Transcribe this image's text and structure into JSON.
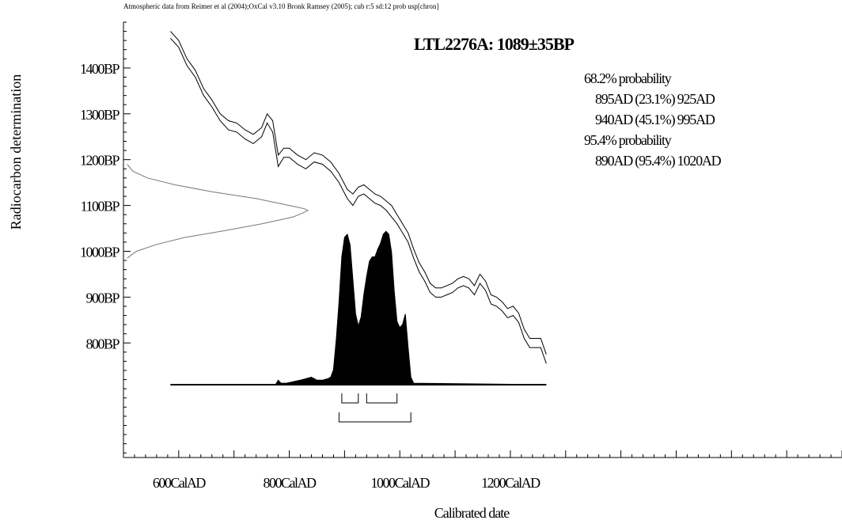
{
  "chart_data": {
    "type": "area",
    "header_note": "Atmospheric data from Reimer et al (2004);OxCal v3.10 Bronk Ramsey (2005); cub r:5 sd:12 prob usp[chron]",
    "title": "LTL2276A: 1089±35BP",
    "xlabel": "Calibrated date",
    "ylabel": "Radiocarbon determination",
    "x_unit": "CalAD",
    "y_unit": "BP",
    "xlim": [
      500,
      1800
    ],
    "ylim": [
      550,
      1500
    ],
    "x_ticks": [
      {
        "value": 600,
        "label": "600CalAD"
      },
      {
        "value": 800,
        "label": "800CalAD"
      },
      {
        "value": 1000,
        "label": "1000CalAD"
      },
      {
        "value": 1200,
        "label": "1200CalAD"
      }
    ],
    "y_ticks": [
      {
        "value": 1400,
        "label": "1400BP"
      },
      {
        "value": 1300,
        "label": "1300BP"
      },
      {
        "value": 1200,
        "label": "1200BP"
      },
      {
        "value": 1100,
        "label": "1100BP"
      },
      {
        "value": 1000,
        "label": "1000BP"
      },
      {
        "value": 900,
        "label": "900BP"
      },
      {
        "value": 800,
        "label": "800BP"
      }
    ],
    "probability_lines": [
      "68.2% probability",
      "895AD (23.1%) 925AD",
      "940AD (45.1%) 995AD",
      "95.4% probability",
      "890AD (95.4%) 1020AD"
    ],
    "sigma_ranges": {
      "one_sigma": [
        [
          895,
          925
        ],
        [
          940,
          995
        ]
      ],
      "two_sigma": [
        [
          890,
          1020
        ]
      ]
    },
    "radiocarbon_date": {
      "mean": 1089,
      "sd": 35
    },
    "calibration_curve": {
      "x": [
        585,
        600,
        615,
        630,
        645,
        660,
        675,
        690,
        705,
        720,
        735,
        750,
        760,
        770,
        780,
        790,
        800,
        815,
        830,
        845,
        860,
        875,
        890,
        905,
        915,
        925,
        935,
        945,
        955,
        965,
        975,
        985,
        995,
        1005,
        1015,
        1025,
        1035,
        1045,
        1055,
        1065,
        1075,
        1085,
        1095,
        1105,
        1115,
        1125,
        1135,
        1145,
        1155,
        1165,
        1175,
        1185,
        1195,
        1205,
        1215,
        1225,
        1235,
        1245,
        1255,
        1265
      ],
      "upper": [
        1480,
        1460,
        1420,
        1395,
        1355,
        1330,
        1300,
        1285,
        1280,
        1265,
        1255,
        1270,
        1300,
        1285,
        1210,
        1225,
        1225,
        1210,
        1200,
        1215,
        1210,
        1195,
        1170,
        1135,
        1125,
        1140,
        1145,
        1135,
        1125,
        1120,
        1110,
        1100,
        1080,
        1060,
        1040,
        1005,
        975,
        955,
        930,
        920,
        920,
        925,
        930,
        940,
        945,
        940,
        925,
        950,
        935,
        905,
        900,
        890,
        875,
        880,
        865,
        830,
        810,
        810,
        810,
        775
      ],
      "lower": [
        1465,
        1445,
        1405,
        1380,
        1340,
        1315,
        1285,
        1265,
        1260,
        1245,
        1235,
        1250,
        1280,
        1260,
        1185,
        1205,
        1205,
        1190,
        1180,
        1195,
        1190,
        1175,
        1150,
        1115,
        1100,
        1120,
        1125,
        1115,
        1105,
        1100,
        1090,
        1075,
        1060,
        1040,
        1020,
        985,
        955,
        935,
        910,
        900,
        900,
        905,
        910,
        920,
        925,
        920,
        905,
        930,
        915,
        885,
        880,
        870,
        855,
        860,
        845,
        810,
        790,
        790,
        790,
        755
      ]
    },
    "calibrated_distribution": {
      "x": [
        585,
        775,
        780,
        785,
        795,
        820,
        840,
        850,
        860,
        870,
        875,
        880,
        885,
        890,
        895,
        900,
        905,
        910,
        915,
        920,
        925,
        930,
        935,
        940,
        945,
        950,
        955,
        960,
        965,
        970,
        975,
        980,
        985,
        990,
        995,
        1000,
        1005,
        1010,
        1015,
        1020,
        1025,
        1265
      ],
      "density": [
        0,
        0,
        0.03,
        0.01,
        0.01,
        0.03,
        0.05,
        0.03,
        0.03,
        0.04,
        0.05,
        0.1,
        0.3,
        0.55,
        0.85,
        0.98,
        1.0,
        0.93,
        0.7,
        0.47,
        0.39,
        0.45,
        0.6,
        0.72,
        0.82,
        0.85,
        0.85,
        0.9,
        0.94,
        1.0,
        1.02,
        1.0,
        0.88,
        0.62,
        0.42,
        0.38,
        0.4,
        0.47,
        0.25,
        0.05,
        0.01,
        0
      ]
    },
    "date_distribution": {
      "bp": [
        985,
        1000,
        1015,
        1030,
        1045,
        1060,
        1075,
        1085,
        1089,
        1093,
        1100,
        1115,
        1130,
        1145,
        1160,
        1175,
        1190
      ],
      "density": [
        0.02,
        0.07,
        0.18,
        0.33,
        0.55,
        0.75,
        0.92,
        0.98,
        1.0,
        0.98,
        0.9,
        0.72,
        0.48,
        0.28,
        0.13,
        0.05,
        0.02
      ]
    }
  }
}
